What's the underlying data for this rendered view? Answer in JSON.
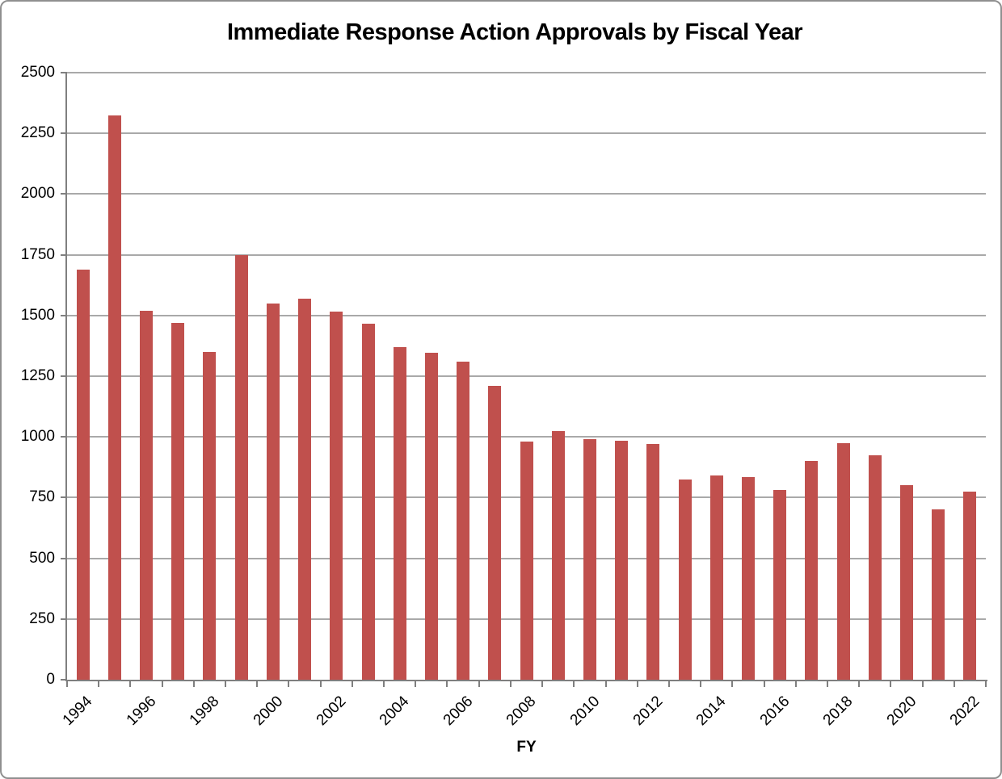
{
  "chart_data": {
    "type": "bar",
    "title": "Immediate Response Action Approvals by Fiscal Year",
    "xlabel": "FY",
    "ylabel": "",
    "ylim": [
      0,
      2500
    ],
    "yticks": [
      0,
      250,
      500,
      750,
      1000,
      1250,
      1500,
      1750,
      2000,
      2250,
      2500
    ],
    "categories": [
      "1994",
      "1995",
      "1996",
      "1997",
      "1998",
      "1999",
      "2000",
      "2001",
      "2002",
      "2003",
      "2004",
      "2005",
      "2006",
      "2007",
      "2008",
      "2009",
      "2010",
      "2011",
      "2012",
      "2013",
      "2014",
      "2015",
      "2016",
      "2017",
      "2018",
      "2019",
      "2020",
      "2021",
      "2022"
    ],
    "values": [
      1690,
      2325,
      1520,
      1470,
      1350,
      1750,
      1550,
      1570,
      1515,
      1465,
      1370,
      1345,
      1310,
      1210,
      980,
      1025,
      990,
      985,
      970,
      825,
      840,
      835,
      780,
      900,
      975,
      925,
      800,
      700,
      775
    ],
    "x_tick_labels": [
      "1994",
      "1996",
      "1998",
      "2000",
      "2002",
      "2004",
      "2006",
      "2008",
      "2010",
      "2012",
      "2014",
      "2016",
      "2018",
      "2020",
      "2022"
    ],
    "bar_color": "#C0504D",
    "gridline_color": "#A9A9A9",
    "axis_color": "#7F7F7F",
    "grid": true,
    "legend": "none"
  }
}
